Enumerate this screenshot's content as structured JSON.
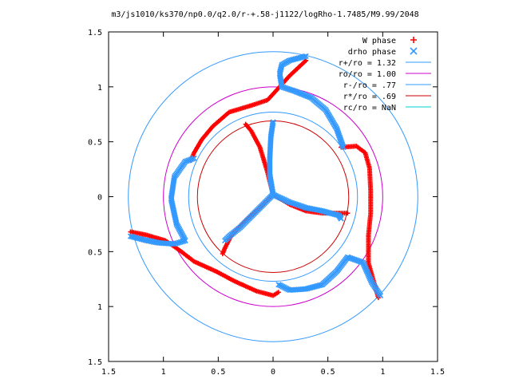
{
  "chart_data": {
    "type": "scatter",
    "title": "m3/js1010/ks370/np0.0/q2.0/r-+.58-j1122/logRho-1.7485/M9.99/2048",
    "xlim": [
      -1.5,
      1.5
    ],
    "ylim": [
      -1.5,
      1.5
    ],
    "x_ticks": [
      -1.5,
      -1,
      -0.5,
      0,
      0.5,
      1,
      1.5
    ],
    "y_ticks": [
      -1.5,
      -1,
      -0.5,
      0,
      0.5,
      1,
      1.5
    ],
    "x_tick_labels": [
      "1.5",
      "1",
      "0.5",
      "0",
      "0.5",
      "1",
      "1.5"
    ],
    "y_tick_labels": [
      "1.5",
      "1",
      "0.5",
      "0",
      "0.5",
      "1",
      "1.5"
    ],
    "legend_position": "top-right",
    "series": [
      {
        "name": "W phase",
        "marker": "+",
        "color": "#ff0000",
        "curves": [
          [
            [
              0.0,
              0.02
            ],
            [
              -0.05,
              0.22
            ],
            [
              -0.12,
              0.45
            ],
            [
              -0.2,
              0.6
            ],
            [
              -0.25,
              0.66
            ]
          ],
          [
            [
              0.0,
              0.02
            ],
            [
              0.15,
              -0.07
            ],
            [
              0.3,
              -0.13
            ],
            [
              0.45,
              -0.15
            ],
            [
              0.62,
              -0.15
            ],
            [
              0.68,
              -0.15
            ]
          ],
          [
            [
              0.0,
              0.02
            ],
            [
              -0.12,
              -0.1
            ],
            [
              -0.25,
              -0.22
            ],
            [
              -0.38,
              -0.35
            ],
            [
              -0.44,
              -0.47
            ],
            [
              -0.46,
              -0.52
            ]
          ],
          [
            [
              0.3,
              1.24
            ],
            [
              0.15,
              1.1
            ],
            [
              0.06,
              1.0
            ],
            [
              -0.05,
              0.88
            ],
            [
              -0.2,
              0.83
            ],
            [
              -0.4,
              0.77
            ],
            [
              -0.55,
              0.64
            ],
            [
              -0.65,
              0.52
            ],
            [
              -0.72,
              0.4
            ],
            [
              -0.75,
              0.33
            ]
          ],
          [
            [
              -1.3,
              -0.32
            ],
            [
              -1.15,
              -0.35
            ],
            [
              -0.98,
              -0.4
            ],
            [
              -0.85,
              -0.49
            ],
            [
              -0.72,
              -0.59
            ],
            [
              -0.52,
              -0.68
            ],
            [
              -0.35,
              -0.77
            ],
            [
              -0.15,
              -0.86
            ],
            [
              0.0,
              -0.9
            ],
            [
              0.05,
              -0.87
            ]
          ],
          [
            [
              0.62,
              0.45
            ],
            [
              0.76,
              0.46
            ],
            [
              0.84,
              0.4
            ],
            [
              0.88,
              0.26
            ],
            [
              0.89,
              0.05
            ],
            [
              0.89,
              -0.15
            ],
            [
              0.87,
              -0.35
            ],
            [
              0.87,
              -0.6
            ],
            [
              0.92,
              -0.78
            ],
            [
              0.96,
              -0.92
            ]
          ]
        ]
      },
      {
        "name": "drho phase",
        "marker": "x",
        "color": "#3399ff",
        "curves": [
          [
            [
              0.0,
              0.02
            ],
            [
              -0.03,
              0.2
            ],
            [
              -0.03,
              0.35
            ],
            [
              -0.02,
              0.55
            ],
            [
              0.0,
              0.68
            ]
          ],
          [
            [
              0.0,
              0.02
            ],
            [
              0.15,
              -0.05
            ],
            [
              0.3,
              -0.1
            ],
            [
              0.45,
              -0.13
            ],
            [
              0.6,
              -0.17
            ],
            [
              0.62,
              -0.2
            ]
          ],
          [
            [
              0.0,
              0.02
            ],
            [
              -0.1,
              -0.08
            ],
            [
              -0.2,
              -0.18
            ],
            [
              -0.3,
              -0.28
            ],
            [
              -0.4,
              -0.36
            ],
            [
              -0.44,
              -0.4
            ]
          ],
          [
            [
              0.3,
              1.28
            ],
            [
              0.15,
              1.24
            ],
            [
              0.08,
              1.2
            ],
            [
              0.06,
              1.12
            ],
            [
              0.08,
              1.0
            ],
            [
              0.2,
              0.96
            ],
            [
              0.35,
              0.9
            ],
            [
              0.48,
              0.79
            ],
            [
              0.58,
              0.62
            ],
            [
              0.64,
              0.45
            ]
          ],
          [
            [
              -1.3,
              -0.36
            ],
            [
              -1.15,
              -0.4
            ],
            [
              -1.05,
              -0.42
            ],
            [
              -0.9,
              -0.43
            ],
            [
              -0.8,
              -0.4
            ],
            [
              -0.88,
              -0.25
            ],
            [
              -0.93,
              -0.02
            ],
            [
              -0.9,
              0.18
            ],
            [
              -0.8,
              0.32
            ],
            [
              -0.72,
              0.35
            ]
          ],
          [
            [
              0.05,
              -0.8
            ],
            [
              0.15,
              -0.85
            ],
            [
              0.3,
              -0.84
            ],
            [
              0.45,
              -0.8
            ],
            [
              0.58,
              -0.68
            ],
            [
              0.68,
              -0.55
            ],
            [
              0.82,
              -0.6
            ],
            [
              0.9,
              -0.78
            ],
            [
              0.98,
              -0.9
            ]
          ]
        ]
      },
      {
        "name": "r+/ro = 1.32",
        "type": "circle",
        "radius": 1.32,
        "color": "#3399ff"
      },
      {
        "name": "ro/ro = 1.00",
        "type": "circle",
        "radius": 1.0,
        "color": "#cc00cc"
      },
      {
        "name": "r-/ro = .77",
        "type": "circle",
        "radius": 0.77,
        "color": "#3399ff"
      },
      {
        "name": "r*/ro = .69",
        "type": "circle",
        "radius": 0.69,
        "color": "#cc0000"
      },
      {
        "name": "rc/ro = NaN",
        "type": "circle",
        "radius": null,
        "color": "#00cccc"
      }
    ]
  }
}
